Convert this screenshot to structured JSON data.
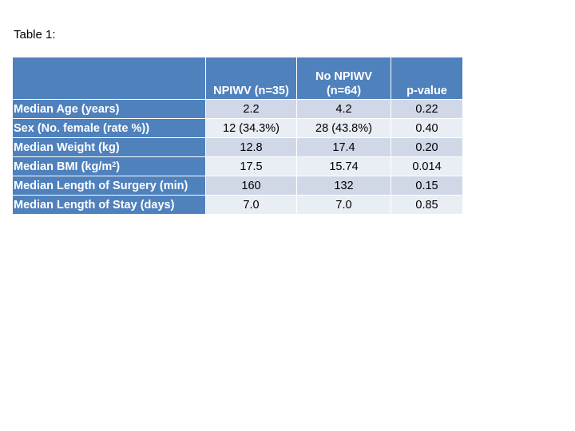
{
  "caption": "Table 1:",
  "table": {
    "columns": [
      "",
      "NPIWV (n=35)",
      "No NPIWV (n=64)",
      "p-value"
    ],
    "rows": [
      {
        "label": "Median Age (years)",
        "values": [
          "2.2",
          "4.2",
          "0.22"
        ]
      },
      {
        "label": "Sex (No. female (rate %))",
        "values": [
          "12 (34.3%)",
          "28 (43.8%)",
          "0.40"
        ]
      },
      {
        "label": "Median Weight (kg)",
        "values": [
          "12.8",
          "17.4",
          "0.20"
        ]
      },
      {
        "label_main": "Median BMI (kg/m",
        "label_sup": "2",
        "label_end": ")",
        "values": [
          "17.5",
          "15.74",
          "0.014"
        ]
      },
      {
        "label": "Median Length of Surgery (min)",
        "values": [
          "160",
          "132",
          "0.15"
        ]
      },
      {
        "label": "Median Length of Stay (days)",
        "values": [
          "7.0",
          "7.0",
          "0.85"
        ]
      }
    ]
  },
  "colors": {
    "header_fill": "#4f81bd",
    "row_band_dark": "#d0d8e8",
    "row_band_light": "#e9edf4",
    "header_text": "#ffffff"
  }
}
